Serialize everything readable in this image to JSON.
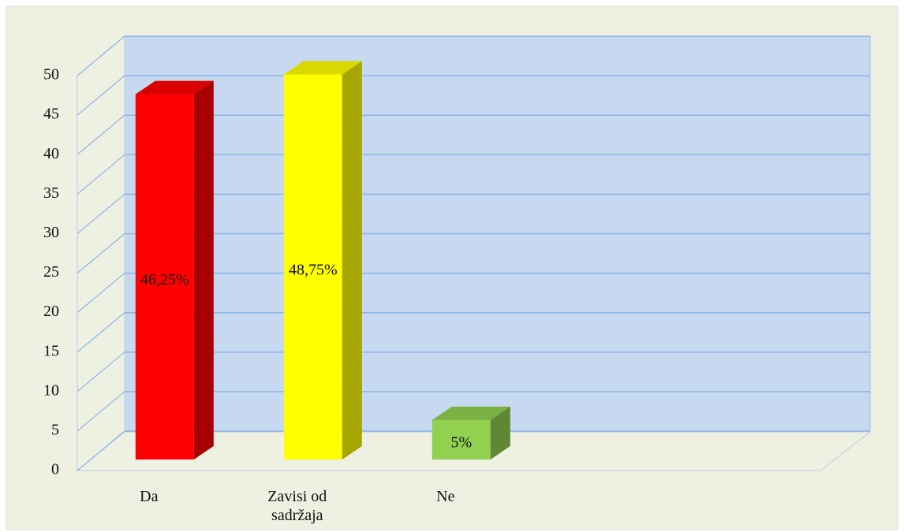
{
  "chart_data": {
    "type": "bar3d",
    "categories": [
      "Da",
      "Zavisi od sadržaja",
      "Ne"
    ],
    "values": [
      46.25,
      48.75,
      5
    ],
    "value_labels": [
      "46,25%",
      "48,75%",
      "5%"
    ],
    "colors": [
      "#ff0000",
      "#ffff00",
      "#92d050"
    ],
    "ylim": [
      0,
      50
    ],
    "yticks": [
      0,
      5,
      10,
      15,
      20,
      25,
      30,
      35,
      40,
      45,
      50
    ],
    "grid": true
  }
}
